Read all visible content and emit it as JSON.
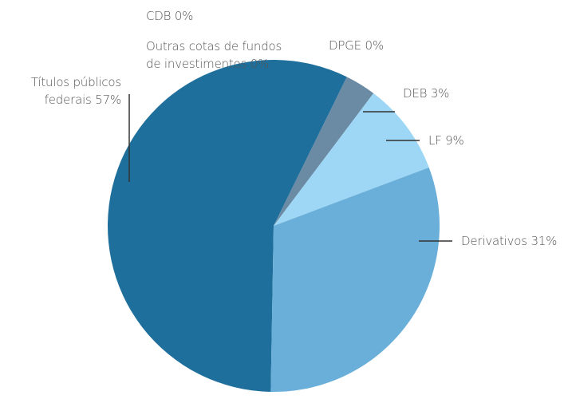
{
  "chart_data": {
    "type": "pie",
    "categories": [
      "Títulos públicos federais",
      "CDB",
      "Outras cotas de fundos de investimentos",
      "DPGE",
      "DEB",
      "LF",
      "Derivativos"
    ],
    "values": [
      57,
      0,
      0,
      0,
      3,
      9,
      31
    ],
    "value_labels": [
      "57%",
      "0%",
      "0%",
      "0%",
      "3%",
      "9%",
      "31%"
    ],
    "colors": [
      "#1f6f9c",
      "#1f6f9c",
      "#1f6f9c",
      "#1f6f9c",
      "#6a8ba3",
      "#9dd7f5",
      "#6aafd9"
    ]
  }
}
